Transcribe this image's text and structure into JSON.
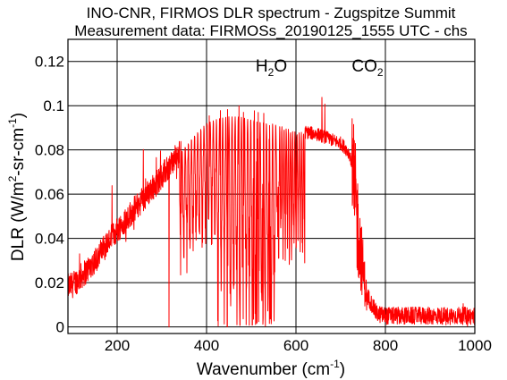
{
  "chart_data": {
    "type": "line",
    "title": "INO-CNR, FIRMOS DLR spectrum - Zugspitze Summit",
    "subtitle": "Measurement data: FIRMOSs_20190125_1555 UTC - chs",
    "xlabel": {
      "main": "Wavenumber (cm",
      "sup": "-1",
      "close": ")"
    },
    "ylabel": {
      "part1": "DLR (W/m",
      "sup1": "2",
      "part2": "-sr-cm",
      "sup2": "-1",
      "close": ")"
    },
    "xlim": [
      90,
      1000
    ],
    "ylim": [
      -0.003,
      0.13
    ],
    "x_ticks": [
      200,
      400,
      600,
      800,
      1000
    ],
    "x_tick_labels": [
      "200",
      "400",
      "600",
      "800",
      "1000"
    ],
    "y_ticks": [
      0,
      0.02,
      0.04,
      0.06,
      0.08,
      0.1,
      0.12
    ],
    "y_tick_labels": [
      "0",
      "0.02",
      "0.04",
      "0.06",
      "0.08",
      "0.1",
      "0.12"
    ],
    "grid": true,
    "line_color": "#ff0000",
    "annotations": [
      {
        "base": "H",
        "sub": "2",
        "rest": "O",
        "x": 545
      },
      {
        "base": "CO",
        "sub": "2",
        "rest": "",
        "x": 760
      }
    ],
    "envelope_x": [
      90,
      100,
      110,
      130,
      150,
      175,
      200,
      225,
      250,
      275,
      300,
      325,
      350,
      375,
      400,
      425,
      450,
      475,
      500,
      525,
      550,
      575,
      600,
      625,
      650,
      675,
      700,
      710,
      720,
      730,
      740,
      750,
      760,
      780,
      800,
      850,
      900,
      950,
      1000
    ],
    "envelope_y": [
      0.018,
      0.019,
      0.021,
      0.025,
      0.03,
      0.037,
      0.044,
      0.05,
      0.056,
      0.062,
      0.068,
      0.075,
      0.081,
      0.087,
      0.092,
      0.094,
      0.095,
      0.095,
      0.094,
      0.093,
      0.092,
      0.09,
      0.088,
      0.088,
      0.087,
      0.085,
      0.083,
      0.081,
      0.078,
      0.07,
      0.05,
      0.03,
      0.012,
      0.004,
      0.003,
      0.003,
      0.003,
      0.003,
      0.003
    ]
  }
}
